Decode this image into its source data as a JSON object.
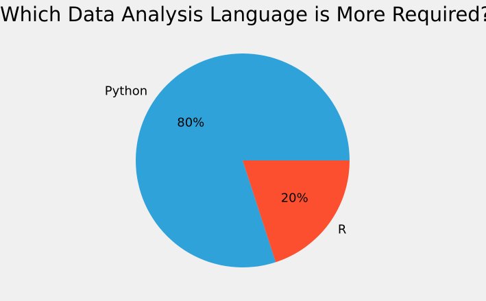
{
  "chart_data": {
    "type": "pie",
    "title": "Which Data Analysis Language is More Required?",
    "categories": [
      "Python",
      "R"
    ],
    "values": [
      80,
      20
    ],
    "percent_labels": [
      "80%",
      "20%"
    ],
    "colors": [
      "#30a2da",
      "#fc4f30"
    ],
    "start_angle": 0,
    "direction": "counterclockwise",
    "legend": "none"
  }
}
